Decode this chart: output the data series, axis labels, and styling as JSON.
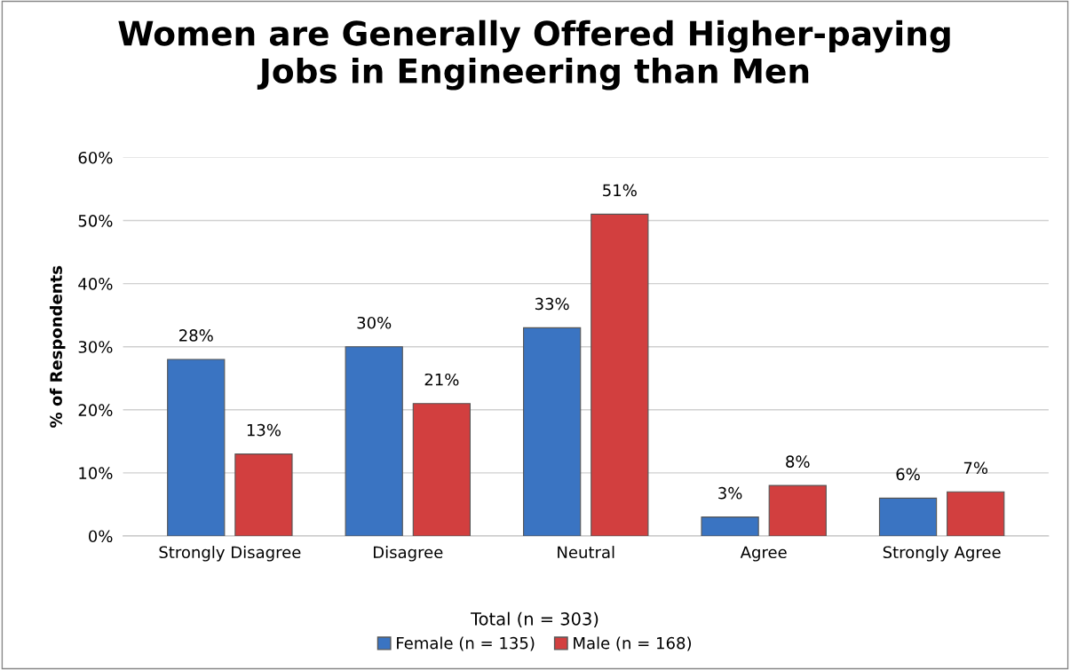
{
  "chart_data": {
    "type": "bar",
    "title": "Women are Generally Offered Higher-paying\nJobs in Engineering than Men",
    "ylabel": "% of Respondents",
    "legend_title": "Total (n = 303)",
    "categories": [
      "Strongly Disagree",
      "Disagree",
      "Neutral",
      "Agree",
      "Strongly Agree"
    ],
    "series": [
      {
        "name": "Female (n = 135)",
        "color": "#3a74c2",
        "values": [
          28,
          30,
          33,
          3,
          6
        ],
        "value_labels": [
          "28%",
          "30%",
          "33%",
          "3%",
          "6%"
        ]
      },
      {
        "name": "Male (n = 168)",
        "color": "#d23f3f",
        "values": [
          13,
          21,
          51,
          8,
          7
        ],
        "value_labels": [
          "13%",
          "21%",
          "51%",
          "8%",
          "7%"
        ]
      }
    ],
    "ylim": [
      0,
      60
    ],
    "yticks": [
      {
        "value": 0,
        "label": "0%"
      },
      {
        "value": 10,
        "label": "10%"
      },
      {
        "value": 20,
        "label": "20%"
      },
      {
        "value": 30,
        "label": "30%"
      },
      {
        "value": 40,
        "label": "40%"
      },
      {
        "value": 50,
        "label": "50%"
      },
      {
        "value": 60,
        "label": "60%"
      }
    ],
    "grid": "y",
    "legend": "bottom"
  }
}
